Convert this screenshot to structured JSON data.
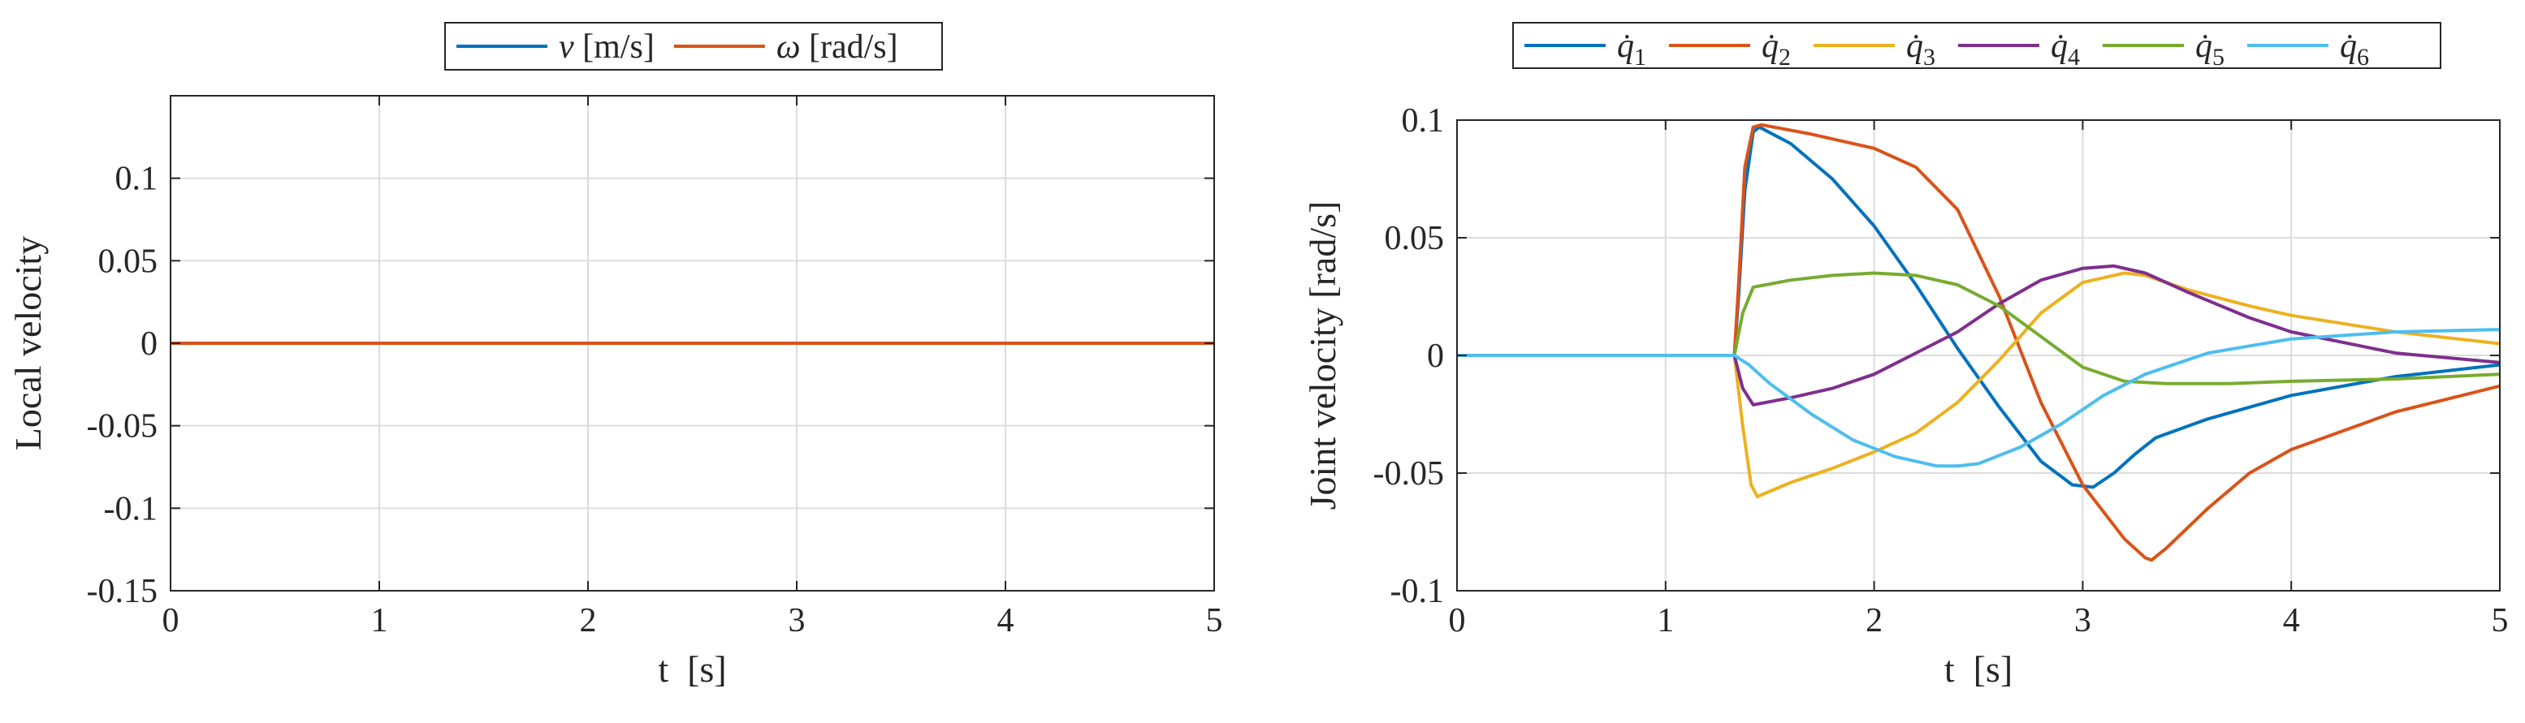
{
  "chart_data": [
    {
      "type": "line",
      "title": "",
      "xlabel": "t  [s]",
      "ylabel": "Local velocity",
      "xlim": [
        0,
        5
      ],
      "ylim": [
        -0.15,
        0.15
      ],
      "xticks": [
        "0",
        "1",
        "2",
        "3",
        "4",
        "5"
      ],
      "xtick_values": [
        0,
        1,
        2,
        3,
        4,
        5
      ],
      "yticks": [
        "0.1",
        "0.05",
        "0",
        "-0.05",
        "-0.1",
        "-0.15"
      ],
      "ytick_values": [
        0.1,
        0.05,
        0,
        -0.05,
        -0.1,
        -0.15
      ],
      "grid": true,
      "legend_position": "top, outside, horizontal",
      "series": [
        {
          "name": "v [m/s]",
          "label_main": "v",
          "label_unit": "[m/s]",
          "color": "#0072BD",
          "x": [
            0,
            1,
            2,
            3,
            4,
            5
          ],
          "y": [
            0,
            0,
            0,
            0,
            0,
            0
          ]
        },
        {
          "name": "ω [rad/s]",
          "label_main": "ω",
          "label_unit": "[rad/s]",
          "color": "#D95319",
          "x": [
            0,
            1,
            2,
            3,
            4,
            5
          ],
          "y": [
            0,
            0,
            0,
            0,
            0,
            0
          ]
        }
      ]
    },
    {
      "type": "line",
      "title": "",
      "xlabel": "t  [s]",
      "ylabel": "Joint velocity [rad/s]",
      "xlim": [
        0,
        5
      ],
      "ylim": [
        -0.1,
        0.1
      ],
      "xticks": [
        "0",
        "1",
        "2",
        "3",
        "4",
        "5"
      ],
      "xtick_values": [
        0,
        1,
        2,
        3,
        4,
        5
      ],
      "yticks": [
        "0.1",
        "0.05",
        "0",
        "-0.05",
        "-0.1"
      ],
      "ytick_values": [
        0.1,
        0.05,
        0,
        -0.05,
        -0.1
      ],
      "grid": true,
      "legend_position": "top, outside, horizontal",
      "series": [
        {
          "name": "q̇1",
          "label_main": "q̇",
          "label_sub": "1",
          "color": "#0072BD",
          "x": [
            0,
            1.33,
            1.35,
            1.38,
            1.42,
            1.45,
            1.6,
            1.8,
            2.0,
            2.2,
            2.4,
            2.6,
            2.8,
            2.95,
            3.05,
            3.15,
            3.25,
            3.35,
            3.6,
            4.0,
            4.5,
            5.0
          ],
          "y": [
            0,
            0,
            0.025,
            0.07,
            0.095,
            0.097,
            0.09,
            0.075,
            0.055,
            0.03,
            0.003,
            -0.022,
            -0.045,
            -0.055,
            -0.056,
            -0.05,
            -0.042,
            -0.035,
            -0.027,
            -0.017,
            -0.009,
            -0.004
          ]
        },
        {
          "name": "q̇2",
          "label_main": "q̇",
          "label_sub": "2",
          "color": "#D95319",
          "x": [
            0,
            1.33,
            1.35,
            1.38,
            1.42,
            1.46,
            1.7,
            2.0,
            2.2,
            2.4,
            2.6,
            2.8,
            3.0,
            3.2,
            3.3,
            3.33,
            3.4,
            3.6,
            3.8,
            4.0,
            4.5,
            5.0
          ],
          "y": [
            0,
            0,
            0.03,
            0.08,
            0.097,
            0.098,
            0.094,
            0.088,
            0.08,
            0.062,
            0.025,
            -0.02,
            -0.055,
            -0.078,
            -0.086,
            -0.087,
            -0.082,
            -0.065,
            -0.05,
            -0.04,
            -0.024,
            -0.013
          ]
        },
        {
          "name": "q̇3",
          "label_main": "q̇",
          "label_sub": "3",
          "color": "#EDB120",
          "x": [
            0,
            1.33,
            1.37,
            1.41,
            1.44,
            1.6,
            1.8,
            2.0,
            2.2,
            2.4,
            2.6,
            2.8,
            3.0,
            3.2,
            3.3,
            3.5,
            3.8,
            4.0,
            4.5,
            5.0
          ],
          "y": [
            0,
            0,
            -0.03,
            -0.055,
            -0.06,
            -0.054,
            -0.048,
            -0.041,
            -0.033,
            -0.02,
            -0.002,
            0.018,
            0.031,
            0.035,
            0.034,
            0.028,
            0.021,
            0.017,
            0.01,
            0.005
          ]
        },
        {
          "name": "q̇4",
          "label_main": "q̇",
          "label_sub": "4",
          "color": "#7E2F8E",
          "x": [
            0,
            1.33,
            1.37,
            1.42,
            1.6,
            1.8,
            2.0,
            2.2,
            2.4,
            2.6,
            2.8,
            3.0,
            3.15,
            3.3,
            3.5,
            3.8,
            4.0,
            4.5,
            5.0
          ],
          "y": [
            0,
            0,
            -0.014,
            -0.021,
            -0.018,
            -0.014,
            -0.008,
            0.001,
            0.01,
            0.022,
            0.032,
            0.037,
            0.038,
            0.035,
            0.027,
            0.016,
            0.01,
            0.001,
            -0.003
          ]
        },
        {
          "name": "q̇5",
          "label_main": "q̇",
          "label_sub": "5",
          "color": "#77AC30",
          "x": [
            0,
            1.33,
            1.37,
            1.42,
            1.6,
            1.8,
            2.0,
            2.2,
            2.4,
            2.6,
            2.8,
            3.0,
            3.2,
            3.4,
            3.7,
            4.0,
            4.5,
            5.0
          ],
          "y": [
            0,
            0,
            0.018,
            0.029,
            0.032,
            0.034,
            0.035,
            0.034,
            0.03,
            0.021,
            0.008,
            -0.005,
            -0.011,
            -0.012,
            -0.012,
            -0.011,
            -0.01,
            -0.008
          ]
        },
        {
          "name": "q̇6",
          "label_main": "q̇",
          "label_sub": "6",
          "color": "#4DBEEE",
          "x": [
            0,
            1.33,
            1.4,
            1.5,
            1.7,
            1.9,
            2.1,
            2.3,
            2.4,
            2.5,
            2.7,
            2.9,
            3.1,
            3.3,
            3.6,
            4.0,
            4.5,
            5.0
          ],
          "y": [
            0,
            0,
            -0.004,
            -0.012,
            -0.025,
            -0.036,
            -0.043,
            -0.047,
            -0.047,
            -0.046,
            -0.039,
            -0.029,
            -0.017,
            -0.008,
            0.001,
            0.007,
            0.01,
            0.011
          ]
        }
      ]
    }
  ]
}
